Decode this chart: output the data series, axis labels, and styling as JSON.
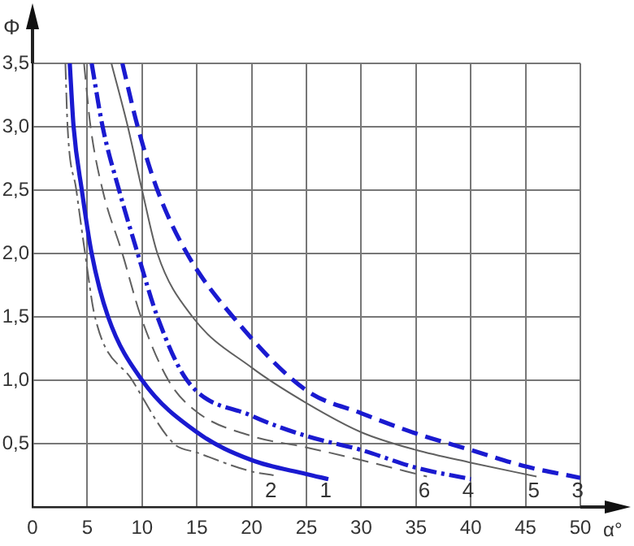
{
  "chart_data": {
    "type": "line",
    "xlabel": "α°",
    "ylabel": "Φ",
    "xlim": [
      0,
      50
    ],
    "ylim": [
      0,
      3.5
    ],
    "xticks": [
      0,
      5,
      10,
      15,
      20,
      25,
      30,
      35,
      40,
      45,
      50
    ],
    "yticks": [
      {
        "value": 0.5,
        "label": "0,5"
      },
      {
        "value": 1,
        "label": "1,0"
      },
      {
        "value": 1.5,
        "label": "1,5"
      },
      {
        "value": 2,
        "label": "2,0"
      },
      {
        "value": 2.5,
        "label": "2,5"
      },
      {
        "value": 3,
        "label": "3,0"
      },
      {
        "value": 3.5,
        "label": "3,5"
      }
    ],
    "grid": true,
    "marker": "none",
    "series": [
      {
        "name": "2",
        "color": "#606060",
        "line_style": "dashdot",
        "x": [
          3.0,
          3.2,
          4.0,
          4.8,
          5.7,
          9.1,
          12.9,
          15,
          20,
          22
        ],
        "values": [
          3.5,
          3.0,
          2.5,
          2.0,
          1.5,
          1.0,
          0.5,
          0.43,
          0.28,
          0.25
        ]
      },
      {
        "name": "1",
        "color": "#1a1ad0",
        "line_style": "solid",
        "x": [
          3.4,
          3.75,
          4.5,
          5.4,
          6.9,
          10,
          15,
          20,
          25,
          27
        ],
        "values": [
          3.5,
          3.0,
          2.5,
          2.0,
          1.5,
          1.0,
          0.59,
          0.37,
          0.26,
          0.22
        ]
      },
      {
        "name": "6",
        "color": "#606060",
        "line_style": "dashed",
        "x": [
          4.7,
          5.3,
          6.4,
          8.2,
          9.9,
          12.4,
          15,
          20,
          25,
          30,
          36
        ],
        "values": [
          3.5,
          3.0,
          2.5,
          2.0,
          1.5,
          1.0,
          0.75,
          0.56,
          0.47,
          0.37,
          0.24
        ]
      },
      {
        "name": "4",
        "color": "#1a1ad0",
        "line_style": "dashdot",
        "x": [
          5.4,
          6.4,
          7.9,
          9.6,
          11.4,
          14.1,
          20,
          25,
          30,
          35,
          40
        ],
        "values": [
          3.5,
          3.0,
          2.5,
          2.0,
          1.5,
          1.0,
          0.72,
          0.56,
          0.45,
          0.31,
          0.22
        ]
      },
      {
        "name": "5",
        "color": "#606060",
        "line_style": "solid",
        "x": [
          7.2,
          8.7,
          10,
          11.4,
          14.6,
          20,
          25,
          30,
          35,
          40,
          46
        ],
        "values": [
          3.5,
          3.0,
          2.5,
          2.0,
          1.5,
          1.1,
          0.82,
          0.59,
          0.45,
          0.35,
          0.24
        ]
      },
      {
        "name": "3",
        "color": "#1a1ad0",
        "line_style": "dashed",
        "x": [
          8.2,
          9.6,
          11.4,
          14.1,
          18.3,
          25,
          30,
          35,
          40,
          45,
          50
        ],
        "values": [
          3.5,
          3.0,
          2.5,
          2.0,
          1.5,
          0.92,
          0.74,
          0.58,
          0.45,
          0.32,
          0.23
        ]
      }
    ]
  }
}
